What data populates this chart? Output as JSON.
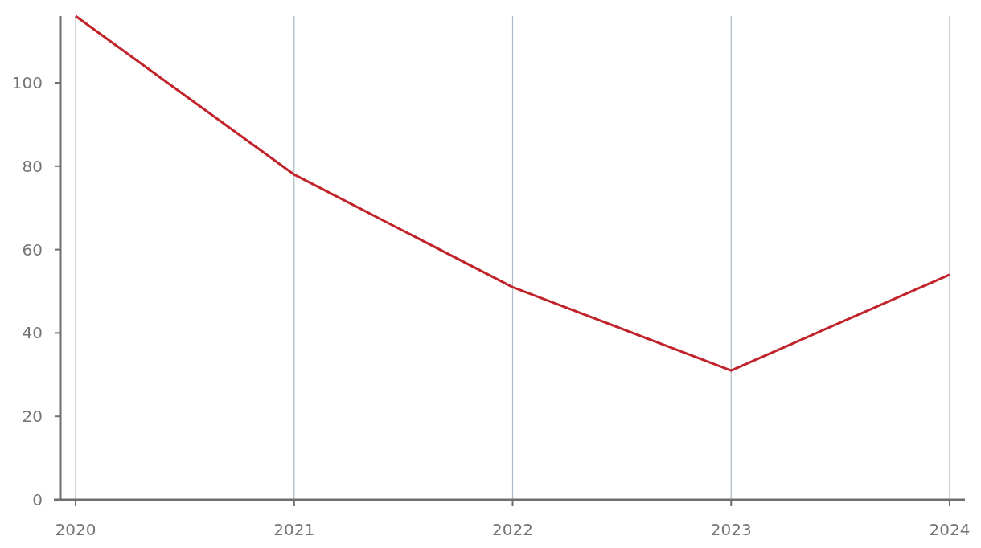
{
  "chart_data": {
    "type": "line",
    "x": [
      2020,
      2021,
      2022,
      2023,
      2024
    ],
    "series": [
      {
        "color": "#c1232b",
        "values": [
          116,
          78,
          51,
          31,
          54
        ]
      }
    ],
    "xlim": [
      2019.93,
      2024.07
    ],
    "xticks": [
      2020,
      2021,
      2022,
      2023,
      2024
    ],
    "ylim": [
      0,
      116
    ],
    "yticks": [
      0,
      20,
      40,
      60,
      80,
      100
    ],
    "grid": "x",
    "marker": "none",
    "line_style": "solid"
  }
}
